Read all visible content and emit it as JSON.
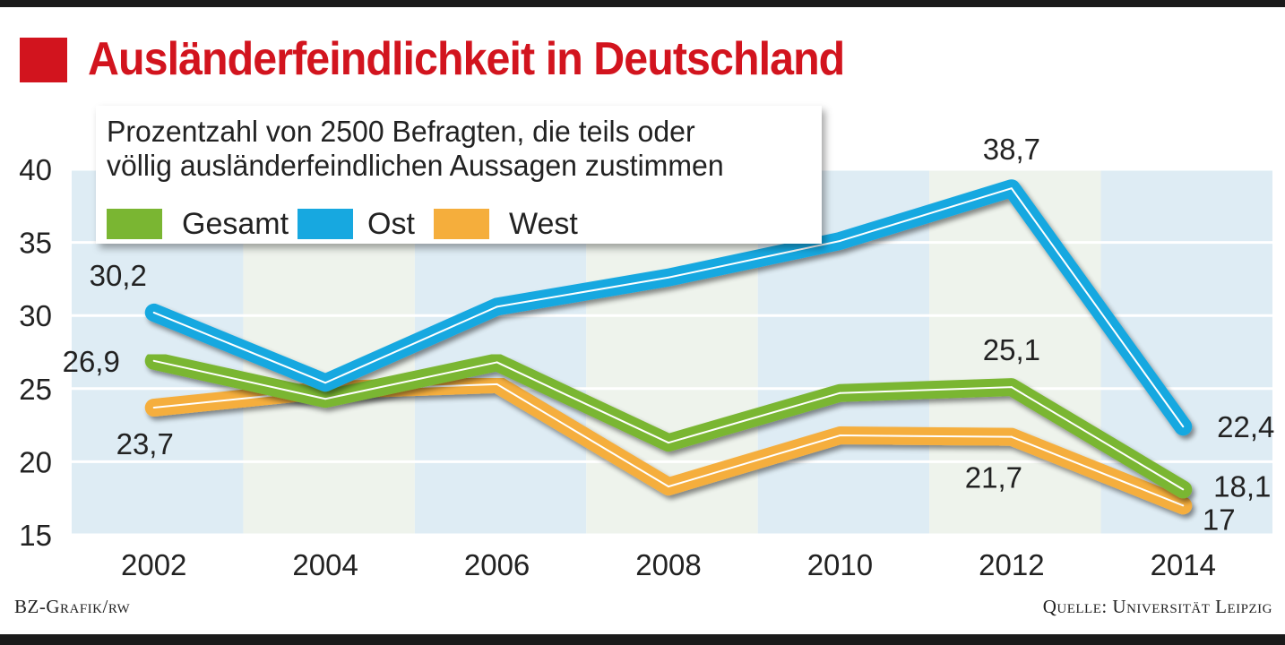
{
  "title": "Ausländerfeindlichkeit in Deutschland",
  "colors": {
    "title": "#d2141e",
    "Gesamt": "#7ab632",
    "Ost": "#17a8e0",
    "West": "#f5ae3c",
    "band_blue": "#deecf4",
    "band_green": "#eef3ec"
  },
  "footer": {
    "left": "BZ-Grafik/rw",
    "right": "Quelle: Universität Leipzig"
  },
  "chart_data": {
    "type": "line",
    "title": "Ausländerfeindlichkeit in Deutschland",
    "subtitle": "Prozentzahl von 2500 Befragten, die teils oder völlig ausländerfeindlichen Aussagen zustimmen",
    "subtitle_lines": [
      "Prozentzahl von 2500 Befragten, die teils oder",
      "völlig ausländerfeindlichen Aussagen zustimmen"
    ],
    "x": [
      "2002",
      "2004",
      "2006",
      "2008",
      "2010",
      "2012",
      "2014"
    ],
    "ylim": [
      15,
      40
    ],
    "yticks": [
      "15",
      "20",
      "25",
      "30",
      "35",
      "40"
    ],
    "grid": true,
    "legend": "top-left",
    "series": [
      {
        "name": "Gesamt",
        "values": [
          26.9,
          24.3,
          26.8,
          21.3,
          24.7,
          25.1,
          18.1
        ]
      },
      {
        "name": "Ost",
        "values": [
          30.2,
          25.4,
          30.6,
          32.6,
          35.1,
          38.7,
          22.4
        ]
      },
      {
        "name": "West",
        "values": [
          23.7,
          24.9,
          25.3,
          18.3,
          21.8,
          21.7,
          17.0
        ]
      }
    ],
    "data_labels": [
      {
        "series": "Ost",
        "year": "2002",
        "text": "30,2"
      },
      {
        "series": "Gesamt",
        "year": "2002",
        "text": "26,9"
      },
      {
        "series": "West",
        "year": "2002",
        "text": "23,7"
      },
      {
        "series": "Ost",
        "year": "2012",
        "text": "38,7"
      },
      {
        "series": "Gesamt",
        "year": "2012",
        "text": "25,1"
      },
      {
        "series": "West",
        "year": "2012",
        "text": "21,7"
      },
      {
        "series": "Ost",
        "year": "2014",
        "text": "22,4"
      },
      {
        "series": "Gesamt",
        "year": "2014",
        "text": "18,1"
      },
      {
        "series": "West",
        "year": "2014",
        "text": "17"
      }
    ]
  }
}
